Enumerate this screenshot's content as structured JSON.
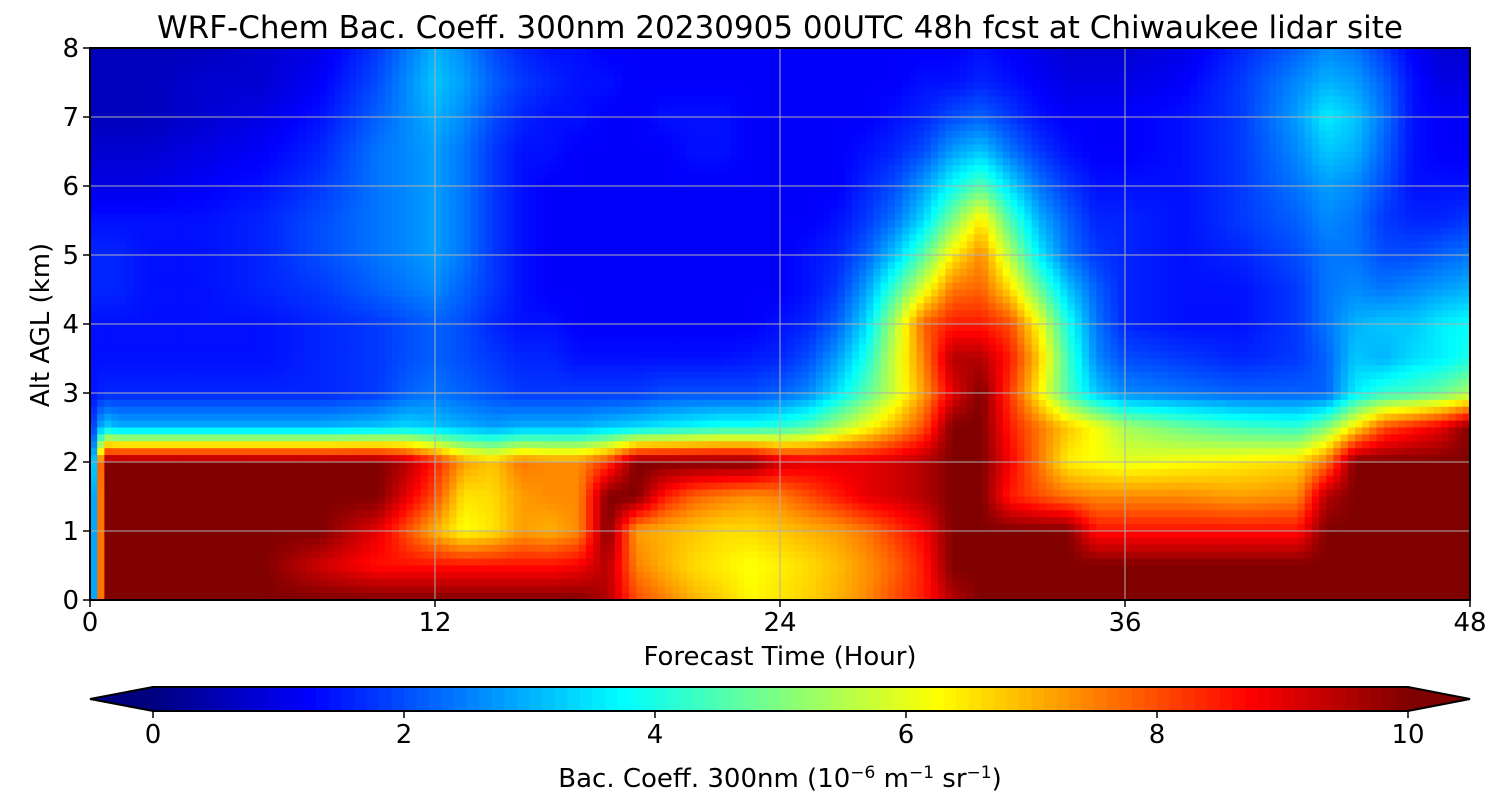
{
  "chart_data": {
    "type": "heatmap",
    "title": "WRF-Chem Bac. Coeff. 300nm  20230905 00UTC 48h fcst at Chiwaukee lidar site",
    "xlabel": "Forecast Time (Hour)",
    "ylabel": "Alt AGL (km)",
    "xlim": [
      0,
      48
    ],
    "ylim": [
      0,
      8
    ],
    "xticks": [
      "0",
      "12",
      "24",
      "36",
      "48"
    ],
    "yticks": [
      "0",
      "1",
      "2",
      "3",
      "4",
      "5",
      "6",
      "7",
      "8"
    ],
    "grid": true,
    "colorscale": "jet",
    "colorbar": {
      "label_main": "Bac. Coeff. 300nm  (10",
      "label_exp1": "−6",
      "label_mid": " m",
      "label_exp2": "−1",
      "label_mid2": " sr",
      "label_exp3": "−1",
      "label_end": ")",
      "range": [
        0,
        10
      ],
      "ticks": [
        "0",
        "2",
        "4",
        "6",
        "8",
        "10"
      ],
      "extend": "both",
      "orientation": "horizontal",
      "position": "bottom"
    },
    "x": [
      0,
      0.5,
      1,
      2,
      4,
      6,
      8,
      10,
      11,
      12,
      13,
      14,
      15,
      16,
      17,
      18,
      19,
      20,
      21,
      22,
      23,
      24,
      25,
      26,
      27,
      28,
      29,
      30,
      31,
      32,
      33,
      34,
      35,
      36,
      38,
      40,
      42,
      43,
      44,
      45,
      46,
      47,
      48
    ],
    "y": [
      0,
      0.5,
      1,
      1.5,
      2,
      2.5,
      3,
      3.5,
      4,
      4.5,
      5,
      5.5,
      6,
      6.5,
      7,
      7.5,
      8
    ],
    "values": [
      [
        0.5,
        10,
        10,
        10,
        10,
        10,
        10,
        10,
        10,
        10,
        10,
        10,
        10,
        10,
        10,
        9.5,
        8,
        7.5,
        7,
        6.7,
        6.3,
        6.5,
        6.7,
        7,
        7.4,
        8,
        8.5,
        9.5,
        10,
        10,
        10,
        10,
        10,
        10,
        10,
        10,
        10,
        10,
        10,
        10,
        10,
        10,
        10
      ],
      [
        0.5,
        10,
        10,
        10,
        10,
        10,
        9.2,
        8.6,
        8.6,
        8.6,
        8.6,
        8.6,
        8.6,
        8.6,
        8.8,
        9.5,
        7.5,
        7,
        6.6,
        6.4,
        6.2,
        6.4,
        6.6,
        6.9,
        7.3,
        7.8,
        8.5,
        10,
        10,
        10,
        10,
        10,
        10,
        10,
        10,
        10,
        10,
        10,
        10,
        10,
        10,
        10,
        10
      ],
      [
        0.5,
        10,
        10,
        10,
        10,
        10,
        10,
        9,
        8,
        7,
        6.2,
        6.5,
        7.2,
        7,
        7.4,
        10,
        7.2,
        7,
        6.8,
        6.6,
        6.6,
        6.8,
        7,
        7.2,
        7.6,
        8.2,
        8.8,
        10,
        10,
        10,
        10,
        10,
        8.6,
        8.6,
        8.6,
        8.6,
        8.6,
        10,
        10,
        10,
        10,
        10,
        10
      ],
      [
        0.5,
        10,
        10,
        10,
        10,
        10,
        10,
        10,
        9,
        8,
        6.5,
        6.6,
        7.2,
        7.4,
        7.4,
        10,
        10,
        8.5,
        7.8,
        7.5,
        7.3,
        7.5,
        8,
        8.5,
        9,
        9.2,
        9.5,
        10,
        10,
        8.5,
        8,
        7.6,
        7.4,
        7.4,
        7.4,
        7.2,
        7.4,
        9.5,
        10,
        10,
        10,
        10,
        10
      ],
      [
        1.0,
        10,
        10,
        10,
        10,
        10,
        10,
        10,
        9.5,
        8.5,
        7.2,
        6.8,
        7.6,
        7.4,
        7.4,
        8.2,
        10,
        10,
        10,
        10,
        10,
        9.2,
        9,
        9,
        9,
        9.2,
        9.5,
        10,
        10,
        8.8,
        7.6,
        6.4,
        6.2,
        6,
        6.2,
        6.4,
        6.6,
        7.6,
        10,
        10,
        10,
        10,
        10
      ],
      [
        1.5,
        3.4,
        3,
        3,
        3,
        3,
        3,
        3.2,
        3.4,
        3.2,
        3,
        2.8,
        3,
        3,
        3,
        3.2,
        3.4,
        3.6,
        3.8,
        4,
        4,
        4.2,
        4.6,
        5.4,
        6.2,
        7,
        8,
        10,
        10,
        8.5,
        7.6,
        6.8,
        6.2,
        5.4,
        4.8,
        4.4,
        4.2,
        5,
        6.5,
        8,
        8.5,
        9,
        10
      ],
      [
        1.4,
        1.6,
        1.6,
        1.6,
        1.6,
        1.6,
        1.6,
        1.8,
        2.2,
        2.4,
        2.2,
        2,
        1.8,
        1.8,
        1.8,
        1.8,
        1.8,
        2,
        2,
        2,
        2,
        2.2,
        2.6,
        3.5,
        4.6,
        5.8,
        7.2,
        9,
        10,
        8.2,
        6.4,
        4.5,
        3.2,
        2.6,
        2.4,
        2.2,
        2.2,
        2.2,
        3.6,
        4.2,
        4.4,
        4.8,
        5.4
      ],
      [
        1.4,
        1.4,
        1.4,
        1.4,
        1.4,
        1.4,
        1.6,
        1.8,
        2,
        2.2,
        2,
        1.8,
        1.6,
        1.6,
        1.4,
        1.4,
        1.4,
        1.4,
        1.4,
        1.4,
        1.5,
        1.6,
        2,
        2.8,
        4,
        5.8,
        7.5,
        9.5,
        9.5,
        8.5,
        6.8,
        4.4,
        2.6,
        2,
        1.8,
        1.6,
        1.8,
        2.2,
        3.2,
        3,
        3.4,
        3.6,
        4
      ],
      [
        1.4,
        1.4,
        1.4,
        1.4,
        1.4,
        1.4,
        1.6,
        1.8,
        2,
        2.2,
        2,
        1.6,
        1.4,
        1.4,
        1.2,
        1.2,
        1.2,
        1.2,
        1.2,
        1.2,
        1.2,
        1.4,
        1.6,
        2.2,
        3.4,
        5.5,
        7.8,
        8.5,
        8.5,
        8,
        6.2,
        4,
        2.4,
        1.6,
        1.4,
        1.4,
        1.8,
        2.4,
        3,
        3.2,
        3.2,
        3.6,
        3.8
      ],
      [
        1.6,
        1.6,
        1.6,
        1.4,
        1.4,
        1.6,
        1.8,
        2.2,
        2.4,
        2.6,
        2.2,
        1.8,
        1.4,
        1.2,
        1.2,
        1.2,
        1.2,
        1.2,
        1.2,
        1.2,
        1.2,
        1.2,
        1.4,
        1.8,
        2.8,
        4.4,
        6,
        7.6,
        7.8,
        6.6,
        4.8,
        3.2,
        2.2,
        1.6,
        1.4,
        1.4,
        1.8,
        2.4,
        2.6,
        2.4,
        2.6,
        2.8,
        3
      ],
      [
        1.6,
        1.6,
        1.6,
        1.4,
        1.4,
        1.6,
        2,
        2.4,
        2.6,
        2.8,
        2.4,
        1.8,
        1.4,
        1.2,
        1.2,
        1.2,
        1.2,
        1.2,
        1.2,
        1.2,
        1.2,
        1.2,
        1.4,
        1.6,
        2.2,
        3.2,
        4.6,
        6.4,
        7.4,
        5.5,
        3.6,
        2.4,
        1.8,
        1.6,
        1.4,
        1.6,
        2,
        2.4,
        2.4,
        2,
        2,
        2.2,
        2.4
      ],
      [
        1.4,
        1.4,
        1.4,
        1.4,
        1.4,
        1.6,
        2,
        2.4,
        2.6,
        2.8,
        2.4,
        1.8,
        1.4,
        1.2,
        1.2,
        1.2,
        1.2,
        1.2,
        1.2,
        1.2,
        1.2,
        1.2,
        1.2,
        1.4,
        1.8,
        2.4,
        3.4,
        5,
        6.5,
        4.5,
        3,
        2.2,
        1.6,
        1.6,
        1.4,
        1.8,
        2.2,
        2.6,
        2.4,
        1.8,
        1.6,
        1.6,
        1.8
      ],
      [
        1,
        1,
        1,
        1,
        1.2,
        1.4,
        1.8,
        2.4,
        2.6,
        2.8,
        2.4,
        1.8,
        1.4,
        1.2,
        1.2,
        1.2,
        1.2,
        1.2,
        1.2,
        1.2,
        1.2,
        1.2,
        1.2,
        1.2,
        1.6,
        2,
        2.8,
        3.8,
        4.6,
        3.4,
        2.4,
        1.8,
        1.4,
        1.4,
        1.4,
        1.8,
        2.4,
        2.8,
        2.6,
        2,
        1.4,
        1.4,
        1.4
      ],
      [
        0.8,
        0.8,
        0.8,
        0.8,
        1,
        1.2,
        1.6,
        2.4,
        2.6,
        2.8,
        2.4,
        1.8,
        1.4,
        1.4,
        1.2,
        1.2,
        1.2,
        1.2,
        1.4,
        1.4,
        1.2,
        1.2,
        1.2,
        1.2,
        1.4,
        1.6,
        2,
        2.8,
        3.2,
        2.4,
        1.8,
        1.4,
        1.2,
        1.2,
        1.4,
        1.8,
        2.6,
        3.2,
        3,
        2.2,
        1.4,
        1.2,
        1.2
      ],
      [
        0.6,
        0.6,
        0.6,
        0.6,
        0.8,
        1,
        1.4,
        2.2,
        2.6,
        3,
        2.6,
        2,
        1.6,
        1.4,
        1.4,
        1.2,
        1.2,
        1.4,
        1.4,
        1.4,
        1.2,
        1.2,
        1.2,
        1.2,
        1.2,
        1.4,
        1.6,
        2,
        2.2,
        1.8,
        1.4,
        1.2,
        1.2,
        1.2,
        1.4,
        1.8,
        2.8,
        3.6,
        3.2,
        2.4,
        1.4,
        1.2,
        1.2
      ],
      [
        0.6,
        0.6,
        0.6,
        0.6,
        0.8,
        0.8,
        1.2,
        2,
        2.6,
        3.2,
        2.8,
        2.2,
        1.8,
        1.6,
        1.4,
        1.4,
        1.2,
        1.2,
        1.2,
        1.2,
        1.2,
        1.2,
        1.2,
        1.2,
        1.2,
        1.2,
        1.4,
        1.4,
        1.6,
        1.4,
        1.2,
        1,
        1,
        1,
        1.2,
        1.8,
        2.6,
        3,
        2.8,
        2.2,
        1.4,
        1,
        1
      ],
      [
        0.6,
        0.6,
        0.6,
        0.6,
        0.6,
        0.8,
        1,
        1.8,
        2.4,
        3,
        2.6,
        2,
        1.6,
        1.4,
        1.4,
        1.2,
        1.2,
        1.2,
        1.2,
        1.2,
        1.2,
        1.2,
        1.2,
        1.2,
        1.2,
        1.2,
        1.2,
        1.2,
        1.4,
        1.2,
        1,
        0.8,
        0.8,
        0.8,
        1,
        1.6,
        2.2,
        2.6,
        2.4,
        1.8,
        1.2,
        0.8,
        0.8
      ]
    ]
  }
}
